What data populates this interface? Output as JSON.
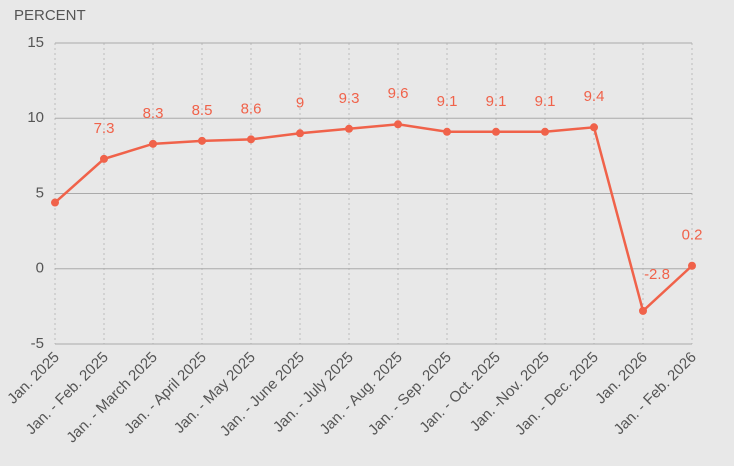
{
  "chart_data": {
    "type": "line",
    "y_label": "PERCENT",
    "categories": [
      "Jan. 2025",
      "Jan. - Feb. 2025",
      "Jan. - March 2025",
      "Jan. - April 2025",
      "Jan. - May 2025",
      "Jan. - June 2025",
      "Jan. - July 2025",
      "Jan. - Aug. 2025",
      "Jan. - Sep. 2025",
      "Jan. - Oct. 2025",
      "Jan. -Nov. 2025",
      "Jan. - Dec. 2025",
      "Jan. 2026",
      "Jan. - Feb. 2026"
    ],
    "values": [
      4.4,
      7.3,
      8.3,
      8.5,
      8.6,
      9,
      9.3,
      9.6,
      9.1,
      9.1,
      9.1,
      9.4,
      -2.8,
      0.2
    ],
    "value_labels": [
      null,
      "7.3",
      "8.3",
      "8.5",
      "8.6",
      "9",
      "9.3",
      "9.6",
      "9.1",
      "9.1",
      "9.1",
      "9.4",
      "-2.8",
      "0.2"
    ],
    "color": "#f0624a",
    "ylim": [
      -5,
      15
    ],
    "yticks": [
      -5,
      0,
      5,
      10,
      15
    ],
    "grid": true
  }
}
